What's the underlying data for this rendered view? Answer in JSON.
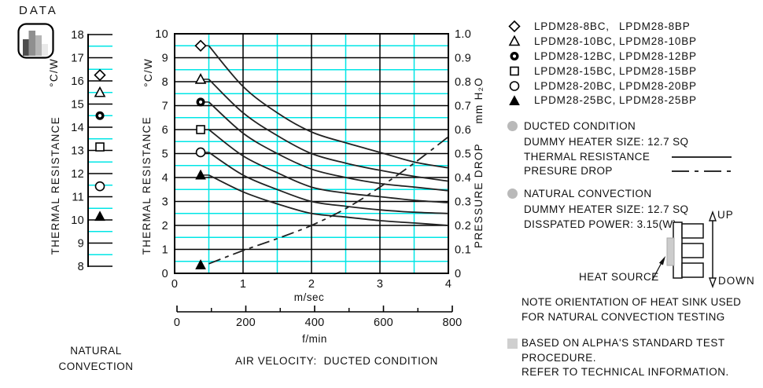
{
  "header": {
    "label": "DATA",
    "icon": "bar-chart-icon"
  },
  "colors": {
    "grid_major": "#000000",
    "grid_minor": "#00e6e6",
    "curve": "#222222",
    "bullet_gray": "#b9b9b9",
    "square_bullet_gray": "#cfcfcf",
    "heat_source_gray": "#cccccc"
  },
  "chart_data": [
    {
      "id": "natural-convection-strip",
      "type": "scatter",
      "caption_lines": [
        "NATURAL",
        "CONVECTION"
      ],
      "yunit": "°C/W",
      "ylabel": "THERMAL RESISTANCE",
      "ylim": [
        8,
        18
      ],
      "ytick_step": 1,
      "yminor_step": 0.5,
      "grid": true,
      "points": [
        {
          "series": "LPDM28-8B",
          "marker": "diamond",
          "value": 16.25
        },
        {
          "series": "LPDM28-10B",
          "marker": "triangle-open",
          "value": 15.5
        },
        {
          "series": "LPDM28-12B",
          "marker": "circle-dot",
          "value": 14.5
        },
        {
          "series": "LPDM28-15B",
          "marker": "square-open",
          "value": 13.15
        },
        {
          "series": "LPDM28-20B",
          "marker": "circle-open",
          "value": 11.45
        },
        {
          "series": "LPDM28-25B",
          "marker": "triangle-filled",
          "value": 10.15
        }
      ]
    },
    {
      "id": "ducted-condition",
      "type": "line",
      "caption": "AIR VELOCITY:  DUCTED CONDITION",
      "xlabel": "m/sec",
      "x2label": "f/min",
      "yunit_left": "°C/W",
      "ylabel_left": "THERMAL RESISTANCE",
      "yunit_right": "mm H₂O",
      "ylabel_right": "PRESSURE DROP",
      "xlim": [
        0,
        4
      ],
      "xticks": [
        0,
        1,
        2,
        3,
        4
      ],
      "xminor_step": 0.5,
      "ylim_left": [
        0,
        10
      ],
      "ytick_step_left": 1,
      "yminor_step": 0.5,
      "ylim_right": [
        0,
        1.0
      ],
      "yticks_right": [
        "1.0",
        "0.9",
        "0.8",
        "0.7",
        "0.6",
        "0.5",
        "0.4",
        "0.3",
        "0.2",
        "0.1",
        "0"
      ],
      "x2lim": [
        0,
        800
      ],
      "x2ticks": [
        0,
        200,
        400,
        600,
        800
      ],
      "x2minor_step": 100,
      "grid": true,
      "thermal_series": [
        {
          "name": "LPDM28-8B",
          "marker": "diamond",
          "marker_point": [
            0.38,
            9.5
          ],
          "x": [
            0.5,
            1,
            1.5,
            2,
            2.5,
            3,
            3.5,
            4
          ],
          "y": [
            9.5,
            7.8,
            6.7,
            5.9,
            5.45,
            5.05,
            4.65,
            4.4
          ]
        },
        {
          "name": "LPDM28-10B",
          "marker": "triangle-open",
          "marker_point": [
            0.38,
            8.1
          ],
          "x": [
            0.5,
            1,
            1.5,
            2,
            2.5,
            3,
            3.5,
            4
          ],
          "y": [
            8.1,
            6.7,
            5.75,
            5.0,
            4.6,
            4.3,
            4.05,
            3.85
          ]
        },
        {
          "name": "LPDM28-12B",
          "marker": "circle-dot",
          "marker_point": [
            0.38,
            7.15
          ],
          "x": [
            0.5,
            1,
            1.5,
            2,
            2.5,
            3,
            3.5,
            4
          ],
          "y": [
            7.15,
            5.85,
            5.0,
            4.35,
            4.0,
            3.75,
            3.6,
            3.45
          ]
        },
        {
          "name": "LPDM28-15B",
          "marker": "square-open",
          "marker_point": [
            0.38,
            6.0
          ],
          "x": [
            0.5,
            1,
            1.5,
            2,
            2.5,
            3,
            3.5,
            4
          ],
          "y": [
            6.0,
            4.9,
            4.2,
            3.6,
            3.35,
            3.2,
            3.05,
            2.95
          ]
        },
        {
          "name": "LPDM28-20B",
          "marker": "circle-open",
          "marker_point": [
            0.38,
            5.05
          ],
          "x": [
            0.5,
            1,
            1.5,
            2,
            2.5,
            3,
            3.5,
            4
          ],
          "y": [
            5.05,
            4.1,
            3.5,
            3.0,
            2.8,
            2.65,
            2.55,
            2.5
          ]
        },
        {
          "name": "LPDM28-25B",
          "marker": "triangle-filled",
          "marker_point": [
            0.38,
            4.1
          ],
          "x": [
            0.5,
            1,
            1.5,
            2,
            2.5,
            3,
            3.5,
            4
          ],
          "y": [
            4.1,
            3.4,
            2.9,
            2.5,
            2.35,
            2.2,
            2.1,
            2.0
          ]
        }
      ],
      "pressure_series": {
        "name": "PRESSURE DROP",
        "axis": "right",
        "line_style": "dash-dot",
        "marker": "triangle-filled",
        "marker_point": [
          0.38,
          0.035
        ],
        "x": [
          0.5,
          1,
          1.5,
          2,
          2.5,
          3,
          3.5,
          4
        ],
        "y": [
          0.04,
          0.095,
          0.145,
          0.2,
          0.27,
          0.36,
          0.46,
          0.57
        ]
      }
    }
  ],
  "legend": {
    "items": [
      {
        "marker": "diamond",
        "label_c": "LPDM28-8BC,",
        "label_p": "LPDM28-8BP"
      },
      {
        "marker": "triangle-open",
        "label_c": "LPDM28-10BC,",
        "label_p": "LPDM28-10BP"
      },
      {
        "marker": "circle-dot",
        "label_c": "LPDM28-12BC,",
        "label_p": "LPDM28-12BP"
      },
      {
        "marker": "square-open",
        "label_c": "LPDM28-15BC,",
        "label_p": "LPDM28-15BP"
      },
      {
        "marker": "circle-open",
        "label_c": "LPDM28-20BC,",
        "label_p": "LPDM28-20BP"
      },
      {
        "marker": "triangle-filled",
        "label_c": "LPDM28-25BC,",
        "label_p": "LPDM28-25BP"
      }
    ]
  },
  "sections": {
    "ducted": {
      "title": "DUCTED CONDITION",
      "line1": "DUMMY HEATER SIZE: 12.7 SQ",
      "thermal_label": "THERMAL RESISTANCE",
      "pressure_label": "PRESURE DROP"
    },
    "natural": {
      "title": "NATURAL CONVECTION",
      "line1": "DUMMY HEATER SIZE: 12.7 SQ",
      "line2": "DISSPATED POWER: 3.15(W)"
    },
    "orientation": {
      "up": "UP",
      "down": "DOWN",
      "heat_source": "HEAT SOURCE",
      "note1": "NOTE ORIENTATION OF HEAT SINK USED",
      "note2": "FOR NATURAL CONVECTION TESTING"
    },
    "footer": {
      "line1": "BASED ON ALPHA'S STANDARD TEST",
      "line2": "PROCEDURE.",
      "line3": "REFER TO TECHNICAL INFORMATION."
    }
  }
}
